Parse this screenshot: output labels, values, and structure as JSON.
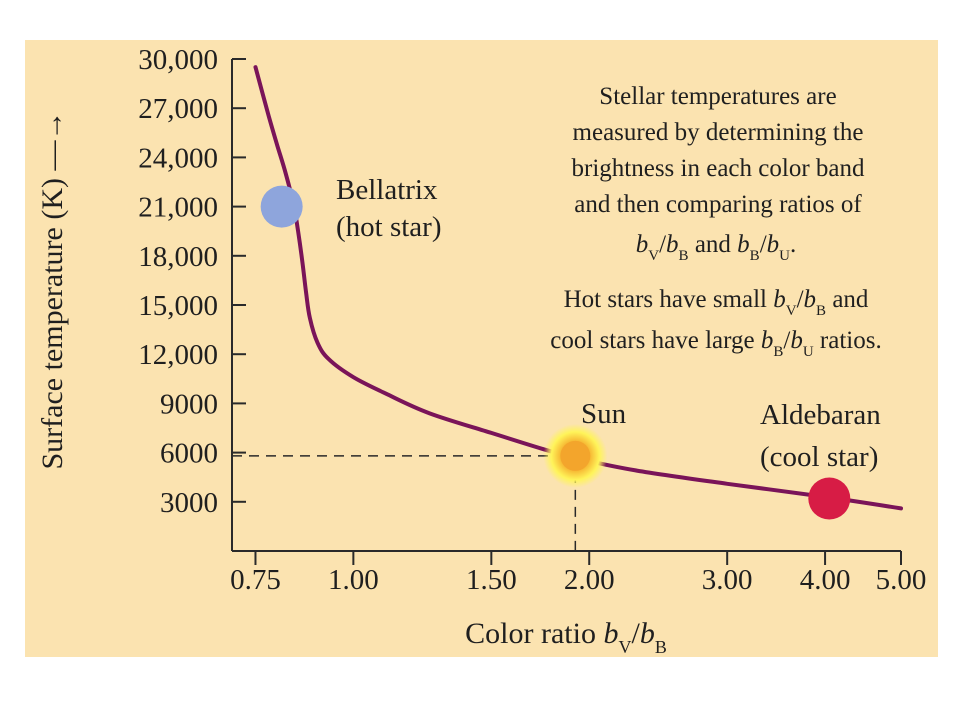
{
  "chart_data": {
    "type": "line",
    "x_scale": "log",
    "xlabel": "Color ratio",
    "xlabel_symbol": {
      "b1": "b",
      "s1": "V",
      "slash": "/",
      "b2": "b",
      "s2": "B"
    },
    "ylabel": "Surface temperature (K) —→",
    "xlim": [
      0.7,
      5.0
    ],
    "ylim": [
      0,
      30000
    ],
    "x_ticks": [
      0.75,
      1.0,
      1.5,
      2.0,
      3.0,
      4.0,
      5.0
    ],
    "x_tick_labels": [
      "0.75",
      "1.00",
      "1.50",
      "2.00",
      "3.00",
      "4.00",
      "5.00"
    ],
    "y_ticks": [
      3000,
      6000,
      9000,
      12000,
      15000,
      18000,
      21000,
      24000,
      27000,
      30000
    ],
    "y_tick_labels": [
      "3000",
      "6000",
      "9000",
      "12,000",
      "15,000",
      "18,000",
      "21,000",
      "24,000",
      "27,000",
      "30,000"
    ],
    "curve": {
      "x": [
        0.75,
        0.78,
        0.8,
        0.82,
        0.84,
        0.85,
        0.86,
        0.87,
        0.88,
        0.9,
        0.93,
        1.0,
        1.1,
        1.25,
        1.5,
        1.75,
        1.95,
        2.3,
        3.0,
        4.0,
        5.0
      ],
      "y": [
        29500,
        26500,
        24700,
        23000,
        21000,
        19500,
        17800,
        15800,
        14200,
        12700,
        11700,
        10600,
        9600,
        8400,
        7200,
        6200,
        5600,
        4900,
        4100,
        3300,
        2600
      ],
      "color": "#7a1459"
    },
    "points": [
      {
        "name": "Bellatrix",
        "label_line1": "Bellatrix",
        "label_line2": "(hot star)",
        "x": 0.81,
        "y": 21000,
        "color": "#8ea5dc"
      },
      {
        "name": "Sun",
        "label_line1": "Sun",
        "x": 1.92,
        "y": 5800,
        "color": "#f3a52c",
        "glow": "#fff45a"
      },
      {
        "name": "Aldebaran",
        "label_line1": "Aldebaran",
        "label_line2": "(cool star)",
        "x": 4.05,
        "y": 3200,
        "color": "#d71c45"
      }
    ],
    "reference_lines": {
      "x": 1.92,
      "y": 5800,
      "style": "dashed"
    },
    "annotations": {
      "para1": [
        "Stellar temperatures are",
        "measured by determining the",
        "brightness in each color band",
        "and then comparing ratios of"
      ],
      "para1_formula": {
        "b1": "b",
        "s1": "V",
        "slash1": "/",
        "b2": "b",
        "s2": "B",
        "mid": " and ",
        "b3": "b",
        "s3": "B",
        "slash2": "/",
        "b4": "b",
        "s4": "U",
        "end": "."
      },
      "para2_line1": {
        "pre": "Hot stars have small ",
        "b1": "b",
        "s1": "V",
        "slash": "/",
        "b2": "b",
        "s2": "B",
        "post": " and"
      },
      "para2_line2": {
        "pre": "cool stars have large ",
        "b1": "b",
        "s1": "B",
        "slash": "/",
        "b2": "b",
        "s2": "U",
        "post": " ratios."
      }
    }
  },
  "colors": {
    "background": "#fbe3b0",
    "axis": "#2a2a2a",
    "text": "#1f1f1f"
  }
}
